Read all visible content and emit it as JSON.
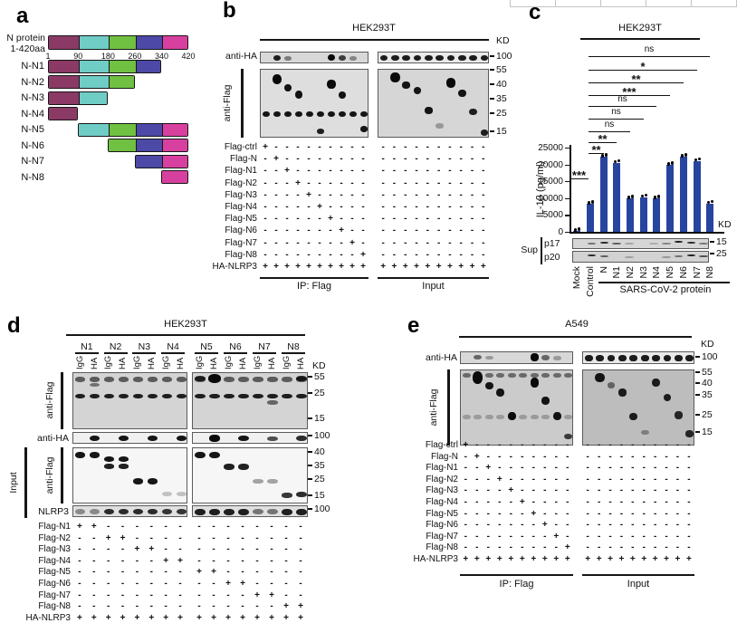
{
  "chart_data": {
    "type": "bar",
    "title": "HEK293T",
    "ylabel": "IL-1β (pg/ml)",
    "ylim": [
      0,
      25000
    ],
    "yticks": [
      0,
      5000,
      10000,
      15000,
      20000,
      25000
    ],
    "categories": [
      "Mock",
      "Control",
      "N",
      "N1",
      "N2",
      "N3",
      "N4",
      "N5",
      "N6",
      "N7",
      "N8"
    ],
    "values": [
      200,
      8300,
      22200,
      20500,
      9900,
      10300,
      9900,
      19800,
      22200,
      21000,
      8400
    ],
    "bar_color": "#27449f",
    "grid": false,
    "legend_position": "none",
    "group_label": "SARS-CoV-2 protein",
    "group_span": [
      "N",
      "N8"
    ],
    "significance": [
      {
        "from": "Control",
        "to": "N8",
        "label": "ns"
      },
      {
        "from": "Control",
        "to": "N7",
        "label": "*"
      },
      {
        "from": "Control",
        "to": "N6",
        "label": "**"
      },
      {
        "from": "Control",
        "to": "N5",
        "label": "***"
      },
      {
        "from": "Control",
        "to": "N4",
        "label": "ns"
      },
      {
        "from": "Control",
        "to": "N3",
        "label": "ns"
      },
      {
        "from": "Control",
        "to": "N2",
        "label": "ns"
      },
      {
        "from": "Control",
        "to": "N1",
        "label": "**"
      },
      {
        "from": "Control",
        "to": "N",
        "label": "**"
      },
      {
        "from": "Mock",
        "to": "Control",
        "label": "***"
      }
    ]
  },
  "panel_a": {
    "label": "a",
    "protein_name": "N protein",
    "protein_range": "1-420aa",
    "scale_ticks": [
      1,
      90,
      180,
      260,
      340,
      420
    ],
    "domains": [
      {
        "start": 1,
        "end": 90,
        "color": "#8b3a66"
      },
      {
        "start": 90,
        "end": 180,
        "color": "#6fcdc5"
      },
      {
        "start": 180,
        "end": 260,
        "color": "#70c041"
      },
      {
        "start": 260,
        "end": 340,
        "color": "#4c49a7"
      },
      {
        "start": 340,
        "end": 420,
        "color": "#d8409f"
      }
    ],
    "constructs": [
      {
        "label": "N-N1",
        "start": 1,
        "end": 340
      },
      {
        "label": "N-N2",
        "start": 1,
        "end": 260
      },
      {
        "label": "N-N3",
        "start": 1,
        "end": 180
      },
      {
        "label": "N-N4",
        "start": 1,
        "end": 90
      },
      {
        "label": "N-N5",
        "start": 90,
        "end": 420
      },
      {
        "label": "N-N6",
        "start": 180,
        "end": 420
      },
      {
        "label": "N-N7",
        "start": 260,
        "end": 420
      },
      {
        "label": "N-N8",
        "start": 340,
        "end": 420
      }
    ]
  },
  "panel_b": {
    "label": "b",
    "cell_line": "HEK293T",
    "kd": "KD",
    "anti_ha": "anti-HA",
    "anti_flag": "anti-Flag",
    "ip_caption": "IP: Flag",
    "input_caption": "Input",
    "markers_ha": [
      "100"
    ],
    "markers_flag": [
      "55",
      "40",
      "35",
      "25",
      "15"
    ],
    "lanes": 10,
    "rows": [
      {
        "label": "Flag-ctrl",
        "plus": [
          0
        ]
      },
      {
        "label": "Flag-N",
        "plus": [
          1
        ]
      },
      {
        "label": "Flag-N1",
        "plus": [
          2
        ]
      },
      {
        "label": "Flag-N2",
        "plus": [
          3
        ]
      },
      {
        "label": "Flag-N3",
        "plus": [
          4
        ]
      },
      {
        "label": "Flag-N4",
        "plus": [
          5
        ]
      },
      {
        "label": "Flag-N5",
        "plus": [
          6
        ]
      },
      {
        "label": "Flag-N6",
        "plus": [
          7
        ]
      },
      {
        "label": "Flag-N7",
        "plus": [
          8
        ]
      },
      {
        "label": "Flag-N8",
        "plus": [
          9
        ]
      },
      {
        "label": "HA-NLRP3",
        "plus": "all"
      }
    ],
    "blots": {
      "ip_ha": {
        "bands": [
          [
            1,
            0.22,
            0.9,
            0.5
          ],
          [
            2,
            0.3,
            0.45,
            0.4
          ],
          [
            6,
            0.12,
            1,
            0.6
          ],
          [
            7,
            0.22,
            0.75,
            0.5
          ],
          [
            8,
            0.28,
            0.4,
            0.4
          ]
        ]
      },
      "input_ha": {
        "rows": [
          [
            0.2,
            0.92,
            0.5
          ]
        ]
      },
      "ip_flag": {
        "rows": [
          [
            0.6,
            0.95,
            0.09
          ]
        ],
        "bands": [
          [
            1,
            0.06,
            1,
            0.15,
            0.85
          ],
          [
            2,
            0.21,
            0.97,
            0.11
          ],
          [
            3,
            0.3,
            0.97,
            0.12
          ],
          [
            5,
            0.86,
            0.9,
            0.08
          ],
          [
            6,
            0.15,
            1,
            0.13,
            0.8
          ],
          [
            7,
            0.31,
            0.97,
            0.11
          ],
          [
            9,
            0.82,
            0.95,
            0.09
          ]
        ]
      },
      "input_flag": {
        "bands": [
          [
            1,
            0.04,
            1,
            0.15,
            0.85
          ],
          [
            2,
            0.17,
            0.95,
            0.1
          ],
          [
            3,
            0.25,
            0.95,
            0.11
          ],
          [
            4,
            0.54,
            0.95,
            0.1
          ],
          [
            5,
            0.78,
            0.3,
            0.08
          ],
          [
            6,
            0.12,
            1,
            0.14,
            0.8
          ],
          [
            7,
            0.29,
            0.95,
            0.11
          ],
          [
            8,
            0.56,
            0.9,
            0.1
          ],
          [
            9,
            0.87,
            0.9,
            0.09
          ]
        ]
      }
    }
  },
  "panel_c": {
    "label": "c",
    "cell_line": "HEK293T",
    "kd": "KD",
    "sup": "Sup",
    "p17": "p17",
    "p20": "p20",
    "marker_p17": "15",
    "marker_p20": "25",
    "blots": {
      "p17": {
        "bands": [
          [
            1,
            0.3,
            0.5
          ],
          [
            2,
            0.22,
            0.85
          ],
          [
            3,
            0.3,
            0.6
          ],
          [
            4,
            0.35,
            0.25
          ],
          [
            6,
            0.35,
            0.2
          ],
          [
            7,
            0.3,
            0.4
          ],
          [
            8,
            0.2,
            0.9
          ],
          [
            9,
            0.22,
            0.85
          ],
          [
            10,
            0.3,
            0.45
          ]
        ]
      },
      "p20": {
        "bands": [
          [
            1,
            0.22,
            0.85
          ],
          [
            2,
            0.28,
            0.6
          ],
          [
            4,
            0.38,
            0.25
          ],
          [
            7,
            0.38,
            0.3
          ],
          [
            8,
            0.32,
            0.5
          ],
          [
            9,
            0.25,
            0.9
          ],
          [
            10,
            0.3,
            0.65
          ]
        ]
      }
    }
  },
  "panel_d": {
    "label": "d",
    "cell_line": "HEK293T",
    "kd": "KD",
    "groups": [
      "N1",
      "N2",
      "N3",
      "N4",
      "N5",
      "N6",
      "N7",
      "N8"
    ],
    "sub_lanes": [
      "IgG",
      "HA"
    ],
    "anti_flag_ip": "anti-Flag",
    "anti_ha": "anti-HA",
    "input": "Input",
    "anti_flag_input": "anti-Flag",
    "nlrp3": "NLRP3",
    "markers_ip": [
      "55",
      "25",
      "15"
    ],
    "marker_ha": "100",
    "markers_input": [
      "40",
      "35",
      "25",
      "15"
    ],
    "marker_nlrp3": "100",
    "lanes": 16,
    "rows": [
      {
        "label": "Flag-N1",
        "plus": [
          0,
          1
        ]
      },
      {
        "label": "Flag-N2",
        "plus": [
          2,
          3
        ]
      },
      {
        "label": "Flag-N3",
        "plus": [
          4,
          5
        ]
      },
      {
        "label": "Flag-N4",
        "plus": [
          6,
          7
        ]
      },
      {
        "label": "Flag-N5",
        "plus": [
          8,
          9
        ]
      },
      {
        "label": "Flag-N6",
        "plus": [
          10,
          11
        ]
      },
      {
        "label": "Flag-N7",
        "plus": [
          12,
          13
        ]
      },
      {
        "label": "Flag-N8",
        "plus": [
          14,
          15
        ]
      },
      {
        "label": "HA-NLRP3",
        "plus": "all"
      }
    ],
    "blots": {
      "ip_flag": {
        "rows": [
          [
            0.07,
            0.6,
            0.09
          ],
          [
            0.36,
            0.9,
            0.09
          ]
        ],
        "bands": [
          [
            1,
            0.17,
            0.5,
            0.07
          ],
          [
            8,
            0.05,
            0.8,
            0.1
          ],
          [
            9,
            0.02,
            1,
            0.16,
            0.85
          ],
          [
            13,
            0.48,
            0.55,
            0.07
          ],
          [
            15,
            0.04,
            0.85,
            0.1
          ]
        ]
      },
      "ha": {
        "bands": [
          [
            1,
            0.22,
            0.95,
            0.5
          ],
          [
            3,
            0.22,
            0.95,
            0.5
          ],
          [
            5,
            0.22,
            0.95,
            0.5
          ],
          [
            7,
            0.22,
            0.95,
            0.5
          ],
          [
            9,
            0.15,
            1,
            0.6
          ],
          [
            11,
            0.22,
            0.95,
            0.5
          ],
          [
            13,
            0.28,
            0.7,
            0.45
          ],
          [
            15,
            0.22,
            0.85,
            0.5
          ]
        ]
      },
      "input_flag": {
        "bands": [
          [
            0,
            0.07,
            0.95,
            0.11
          ],
          [
            1,
            0.07,
            0.95,
            0.11
          ],
          [
            2,
            0.15,
            0.95,
            0.1
          ],
          [
            3,
            0.15,
            0.95,
            0.1
          ],
          [
            2,
            0.28,
            0.9,
            0.09
          ],
          [
            3,
            0.28,
            0.9,
            0.09
          ],
          [
            4,
            0.54,
            0.95,
            0.11
          ],
          [
            5,
            0.54,
            0.95,
            0.11
          ],
          [
            6,
            0.78,
            0.22,
            0.08
          ],
          [
            7,
            0.78,
            0.22,
            0.08
          ],
          [
            8,
            0.06,
            0.95,
            0.12
          ],
          [
            9,
            0.06,
            0.95,
            0.12
          ],
          [
            10,
            0.28,
            0.9,
            0.11
          ],
          [
            11,
            0.28,
            0.9,
            0.11
          ],
          [
            12,
            0.55,
            0.35,
            0.08
          ],
          [
            13,
            0.55,
            0.35,
            0.08
          ],
          [
            14,
            0.79,
            0.8,
            0.09
          ],
          [
            15,
            0.77,
            0.85,
            0.1
          ]
        ]
      },
      "nlrp3": {
        "bands": [
          [
            0,
            0.22,
            0.4,
            0.5
          ],
          [
            1,
            0.22,
            0.4,
            0.5
          ],
          [
            2,
            0.22,
            0.85,
            0.5
          ],
          [
            3,
            0.22,
            0.85,
            0.5
          ],
          [
            4,
            0.22,
            0.85,
            0.5
          ],
          [
            5,
            0.22,
            0.85,
            0.5
          ],
          [
            6,
            0.22,
            0.8,
            0.5
          ],
          [
            7,
            0.22,
            0.8,
            0.5
          ],
          [
            8,
            0.2,
            0.9,
            0.55
          ],
          [
            9,
            0.2,
            0.9,
            0.55
          ],
          [
            10,
            0.2,
            0.9,
            0.55
          ],
          [
            11,
            0.2,
            0.9,
            0.55
          ],
          [
            12,
            0.22,
            0.5,
            0.5
          ],
          [
            13,
            0.22,
            0.5,
            0.5
          ],
          [
            14,
            0.2,
            0.9,
            0.55
          ],
          [
            15,
            0.2,
            0.9,
            0.55
          ]
        ]
      }
    }
  },
  "panel_e": {
    "label": "e",
    "cell_line": "A549",
    "kd": "KD",
    "anti_ha": "anti-HA",
    "anti_flag": "anti-Flag",
    "ip_caption": "IP: Flag",
    "input_caption": "Input",
    "markers_ha": [
      "100"
    ],
    "markers_flag": [
      "55",
      "40",
      "35",
      "25",
      "15"
    ],
    "lanes": 10,
    "rows": [
      {
        "label": "Flag-ctrl",
        "plus": [
          0
        ]
      },
      {
        "label": "Flag-N",
        "plus": [
          1
        ]
      },
      {
        "label": "Flag-N1",
        "plus": [
          2
        ]
      },
      {
        "label": "Flag-N2",
        "plus": [
          3
        ]
      },
      {
        "label": "Flag-N3",
        "plus": [
          4
        ]
      },
      {
        "label": "Flag-N4",
        "plus": [
          5
        ]
      },
      {
        "label": "Flag-N5",
        "plus": [
          6
        ]
      },
      {
        "label": "Flag-N6",
        "plus": [
          7
        ]
      },
      {
        "label": "Flag-N7",
        "plus": [
          8
        ]
      },
      {
        "label": "Flag-N8",
        "plus": [
          9
        ]
      },
      {
        "label": "HA-NLRP3",
        "plus": "all"
      }
    ],
    "blots": {
      "ip_ha": {
        "bands": [
          [
            1,
            0.2,
            0.55,
            0.4
          ],
          [
            2,
            0.25,
            0.3,
            0.35
          ],
          [
            6,
            0.1,
            1,
            0.6
          ],
          [
            7,
            0.22,
            0.55,
            0.45
          ],
          [
            8,
            0.28,
            0.3,
            0.35
          ]
        ]
      },
      "input_ha": {
        "rows": [
          [
            0.18,
            0.92,
            0.5
          ]
        ]
      },
      "ip_flag": {
        "rows": [
          [
            0.04,
            0.5,
            0.06
          ],
          [
            0.58,
            0.25,
            0.06
          ]
        ],
        "bands": [
          [
            1,
            0.01,
            1,
            0.17,
            0.9
          ],
          [
            2,
            0.15,
            0.95,
            0.1
          ],
          [
            3,
            0.24,
            0.95,
            0.11
          ],
          [
            4,
            0.55,
            1,
            0.11
          ],
          [
            6,
            0.1,
            1,
            0.13
          ],
          [
            7,
            0.34,
            0.95,
            0.11
          ],
          [
            8,
            0.55,
            0.95,
            0.11
          ],
          [
            9,
            0.83,
            0.75,
            0.08
          ]
        ]
      },
      "input_flag": {
        "bands": [
          [
            1,
            0.03,
            0.95,
            0.13,
            0.85
          ],
          [
            2,
            0.16,
            0.5,
            0.08
          ],
          [
            3,
            0.24,
            0.9,
            0.1
          ],
          [
            4,
            0.56,
            0.9,
            0.1
          ],
          [
            5,
            0.78,
            0.35,
            0.07
          ],
          [
            6,
            0.11,
            0.9,
            0.11
          ],
          [
            7,
            0.31,
            0.9,
            0.1
          ],
          [
            8,
            0.54,
            0.85,
            0.1
          ],
          [
            9,
            0.79,
            0.85,
            0.09
          ]
        ]
      }
    }
  }
}
